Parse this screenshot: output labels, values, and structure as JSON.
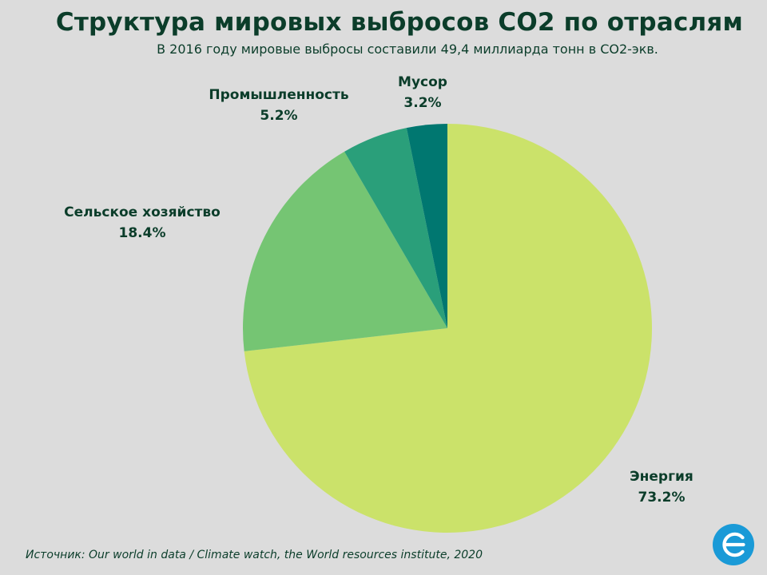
{
  "header": {
    "title": "Структура мировых выбросов CO2 по отраслям",
    "subtitle": "В 2016 году мировые выбросы составили 49,4 миллиарда тонн в СО2-экв."
  },
  "footer": {
    "source": "Источник: Our world in data / Climate watch, the World resources institute, 2020"
  },
  "logo": {
    "icon": "euro-circle-logo-icon",
    "color": "#1a9ad7"
  },
  "chart_data": {
    "type": "pie",
    "title": "Структура мировых выбросов CO2 по отраслям",
    "subtitle": "В 2016 году мировые выбросы составили 49,4 миллиарда тонн в СО2-экв.",
    "start": "12 o'clock",
    "direction": "clockwise",
    "slices": [
      {
        "label": "Энергия",
        "value": 73.2,
        "value_label": "73.2%",
        "color": "#cbe26a"
      },
      {
        "label": "Сельское хозяйство",
        "value": 18.4,
        "value_label": "18.4%",
        "color": "#75c573"
      },
      {
        "label": "Промышленность",
        "value": 5.2,
        "value_label": "5.2%",
        "color": "#2a9f7a"
      },
      {
        "label": "Мусор",
        "value": 3.2,
        "value_label": "3.2%",
        "color": "#007770"
      }
    ]
  }
}
